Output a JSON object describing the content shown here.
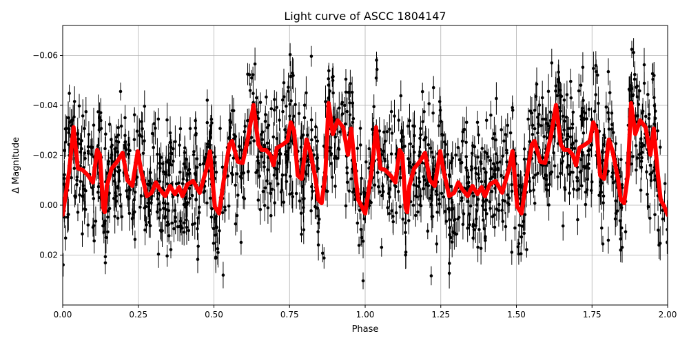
{
  "chart_data": {
    "type": "scatter",
    "title": "Light curve of ASCC 1804147",
    "xlabel": "Phase",
    "ylabel": "Δ Magnitude",
    "xlim": [
      0,
      2
    ],
    "ylim": [
      0.04,
      -0.072
    ],
    "y_inverted": true,
    "grid": true,
    "xticks": [
      "0.00",
      "0.25",
      "0.50",
      "0.75",
      "1.00",
      "1.25",
      "1.50",
      "1.75",
      "2.00"
    ],
    "yticks": [
      "−0.06",
      "−0.04",
      "−0.02",
      "0.00",
      "0.02"
    ],
    "xtick_values": [
      0,
      0.25,
      0.5,
      0.75,
      1,
      1.25,
      1.5,
      1.75,
      2
    ],
    "ytick_values": [
      -0.06,
      -0.04,
      -0.02,
      0,
      0.02
    ],
    "observations": {
      "color": "#000000",
      "marker": "circle",
      "error_bars": true,
      "scatter_range": [
        -0.07,
        0.04
      ]
    },
    "model_curve": {
      "color": "#ff0000",
      "x": [
        0.0,
        0.021,
        0.036,
        0.05,
        0.066,
        0.084,
        0.1,
        0.114,
        0.123,
        0.134,
        0.139,
        0.146,
        0.162,
        0.18,
        0.198,
        0.214,
        0.23,
        0.248,
        0.26,
        0.278,
        0.294,
        0.308,
        0.321,
        0.339,
        0.355,
        0.371,
        0.385,
        0.396,
        0.412,
        0.431,
        0.453,
        0.476,
        0.487,
        0.503,
        0.517,
        0.533,
        0.551,
        0.56,
        0.579,
        0.595,
        0.613,
        0.631,
        0.647,
        0.658,
        0.672,
        0.686,
        0.697,
        0.708,
        0.727,
        0.743,
        0.754,
        0.765,
        0.777,
        0.79,
        0.806,
        0.818,
        0.836,
        0.845,
        0.856,
        0.868,
        0.879,
        0.893,
        0.909,
        0.927,
        0.943,
        0.954,
        0.968,
        0.977,
        0.989,
        1.0,
        1.021,
        1.036,
        1.05,
        1.066,
        1.084,
        1.1,
        1.114,
        1.123,
        1.134,
        1.139,
        1.146,
        1.162,
        1.18,
        1.198,
        1.214,
        1.23,
        1.248,
        1.26,
        1.278,
        1.294,
        1.308,
        1.321,
        1.339,
        1.355,
        1.371,
        1.385,
        1.396,
        1.412,
        1.431,
        1.453,
        1.476,
        1.487,
        1.503,
        1.517,
        1.533,
        1.551,
        1.56,
        1.579,
        1.595,
        1.613,
        1.631,
        1.647,
        1.658,
        1.672,
        1.686,
        1.697,
        1.708,
        1.727,
        1.743,
        1.754,
        1.765,
        1.777,
        1.79,
        1.806,
        1.818,
        1.836,
        1.845,
        1.856,
        1.868,
        1.879,
        1.893,
        1.909,
        1.927,
        1.943,
        1.954,
        1.968,
        1.977,
        1.989,
        2.0
      ],
      "y": [
        0.0039,
        -0.0133,
        -0.0312,
        -0.0147,
        -0.0141,
        -0.0119,
        -0.0091,
        -0.0221,
        -0.0202,
        0.0011,
        0.0028,
        -0.0077,
        -0.0147,
        -0.0174,
        -0.021,
        -0.01,
        -0.0077,
        -0.0216,
        -0.0133,
        -0.0036,
        -0.005,
        -0.0091,
        -0.0064,
        -0.0036,
        -0.0077,
        -0.0044,
        -0.0072,
        -0.0036,
        -0.0083,
        -0.0097,
        -0.005,
        -0.0149,
        -0.0216,
        0.0006,
        0.0033,
        -0.0105,
        -0.0243,
        -0.0257,
        -0.0174,
        -0.0169,
        -0.0271,
        -0.0401,
        -0.0243,
        -0.0221,
        -0.0221,
        -0.0202,
        -0.016,
        -0.0229,
        -0.0243,
        -0.0257,
        -0.0332,
        -0.0299,
        -0.0119,
        -0.0105,
        -0.0263,
        -0.0216,
        -0.0105,
        -0.0022,
        -0.0008,
        -0.0119,
        -0.0409,
        -0.0285,
        -0.034,
        -0.0312,
        -0.0202,
        -0.0307,
        -0.0119,
        -0.0022,
        0.0006,
        0.0033,
        -0.0133,
        -0.0312,
        -0.0147,
        -0.0141,
        -0.0119,
        -0.0091,
        -0.0221,
        -0.0202,
        0.0011,
        0.0028,
        -0.0077,
        -0.0147,
        -0.0174,
        -0.021,
        -0.01,
        -0.0077,
        -0.0216,
        -0.0133,
        -0.0036,
        -0.005,
        -0.0091,
        -0.0064,
        -0.0036,
        -0.0077,
        -0.0044,
        -0.0072,
        -0.0036,
        -0.0083,
        -0.0097,
        -0.005,
        -0.0149,
        -0.0216,
        0.0006,
        0.0033,
        -0.0105,
        -0.0243,
        -0.0257,
        -0.0174,
        -0.0169,
        -0.0271,
        -0.0401,
        -0.0243,
        -0.0221,
        -0.0221,
        -0.0202,
        -0.016,
        -0.0229,
        -0.0243,
        -0.0257,
        -0.0332,
        -0.0299,
        -0.0119,
        -0.0105,
        -0.0263,
        -0.0216,
        -0.0105,
        -0.0022,
        -0.0008,
        -0.0119,
        -0.0409,
        -0.0285,
        -0.034,
        -0.0312,
        -0.0202,
        -0.0307,
        -0.0119,
        -0.0022,
        0.0006,
        0.0039
      ]
    }
  }
}
